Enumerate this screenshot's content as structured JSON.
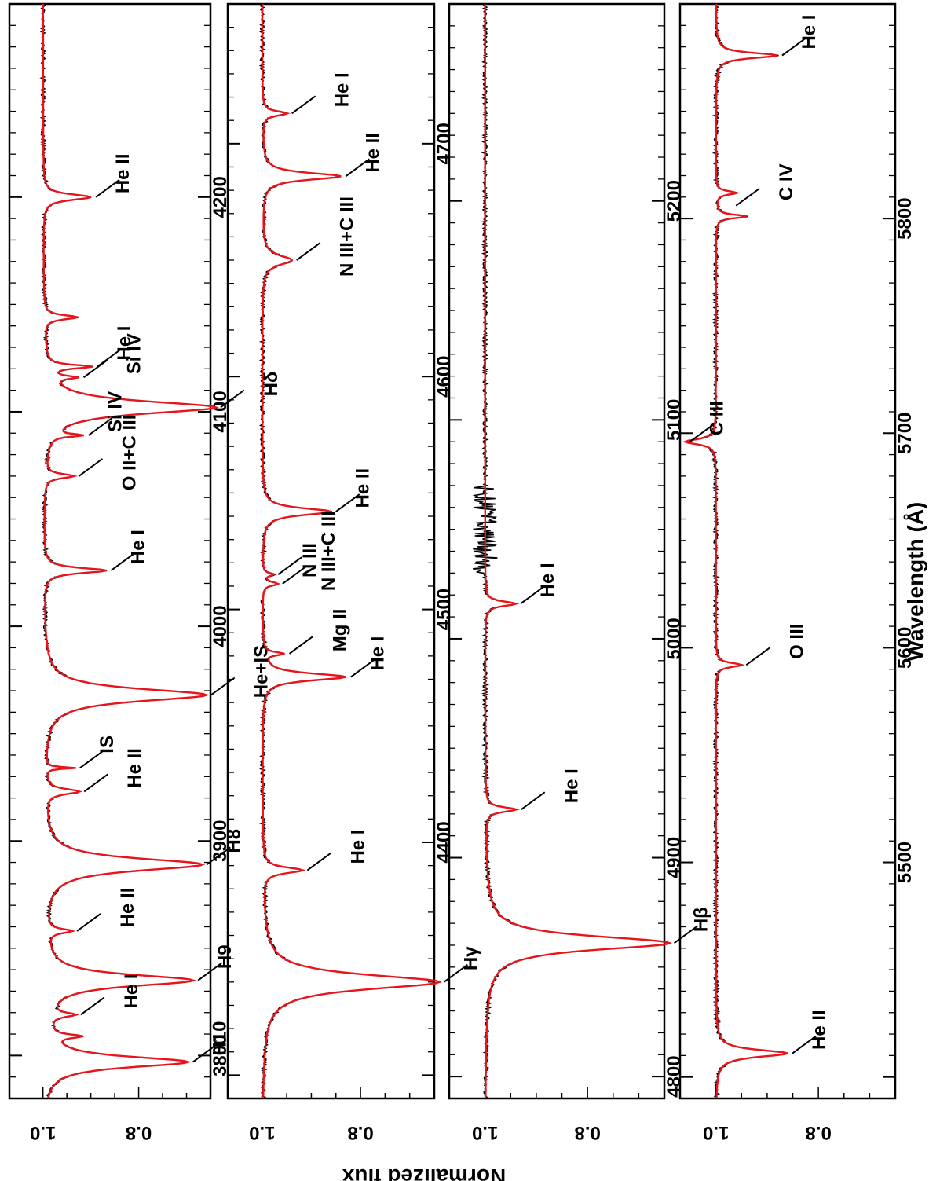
{
  "figure": {
    "ylabel": "Normalized flux",
    "xlabel": "Wavelength (Å)",
    "rotation": "rotated 90° clockwise",
    "colors": {
      "observed": "#000000",
      "model": "#e8141b",
      "frame": "#000000"
    }
  },
  "chart_data": [
    {
      "type": "line",
      "panel": 1,
      "xlim": [
        3780,
        4290
      ],
      "ylim": [
        0.65,
        1.07
      ],
      "xticks": [
        3800,
        3900,
        4000,
        4100,
        4200
      ],
      "yticks": [
        0.8,
        1.0
      ],
      "series": [
        {
          "name": "observed",
          "color": "#000000"
        },
        {
          "name": "model",
          "color": "#e8141b"
        }
      ],
      "lines": [
        {
          "wl": 3797,
          "depth": 0.3,
          "width": 3.0
        },
        {
          "wl": 3809,
          "depth": 0.06,
          "width": 1.0
        },
        {
          "wl": 3819,
          "depth": 0.05,
          "width": 1.2
        },
        {
          "wl": 3835,
          "depth": 0.31,
          "width": 3.2
        },
        {
          "wl": 3858,
          "depth": 0.05,
          "width": 1.2
        },
        {
          "wl": 3889,
          "depth": 0.33,
          "width": 3.5
        },
        {
          "wl": 3923,
          "depth": 0.07,
          "width": 1.5
        },
        {
          "wl": 3934,
          "depth": 0.06,
          "width": 0.5
        },
        {
          "wl": 3968,
          "depth": 0.34,
          "width": 3.5
        },
        {
          "wl": 4026,
          "depth": 0.13,
          "width": 1.5
        },
        {
          "wl": 4070,
          "depth": 0.06,
          "width": 1.2
        },
        {
          "wl": 4089,
          "depth": 0.06,
          "width": 0.8
        },
        {
          "wl": 4102,
          "depth": 0.36,
          "width": 3.5
        },
        {
          "wl": 4116,
          "depth": 0.05,
          "width": 0.8
        },
        {
          "wl": 4121,
          "depth": 0.09,
          "width": 1.0
        },
        {
          "wl": 4144,
          "depth": 0.07,
          "width": 1.2
        },
        {
          "wl": 4200,
          "depth": 0.1,
          "width": 1.6
        }
      ],
      "annotations": [
        {
          "text": "H10",
          "wl": 3797
        },
        {
          "text": "He I",
          "wl": 3819
        },
        {
          "text": "H9",
          "wl": 3835
        },
        {
          "text": "He II",
          "wl": 3858
        },
        {
          "text": "H8",
          "wl": 3889
        },
        {
          "text": "He II",
          "wl": 3923
        },
        {
          "text": "IS",
          "wl": 3934
        },
        {
          "text": "He+IS",
          "wl": 3968
        },
        {
          "text": "He I",
          "wl": 4026
        },
        {
          "text": "O II+C III",
          "wl": 4070
        },
        {
          "text": "Si IV",
          "wl": 4089
        },
        {
          "text": "Hδ",
          "wl": 4102
        },
        {
          "text": "He I",
          "wl": 4121
        },
        {
          "text": "Si IV",
          "wl": 4116
        },
        {
          "text": "He II",
          "wl": 4200
        }
      ]
    },
    {
      "type": "line",
      "panel": 2,
      "xlim": [
        4290,
        4760
      ],
      "ylim": [
        0.65,
        1.07
      ],
      "xticks": [
        4400,
        4500,
        4600,
        4700
      ],
      "yticks": [
        0.8,
        1.0
      ],
      "series": [
        {
          "name": "observed",
          "color": "#000000"
        },
        {
          "name": "model",
          "color": "#e8141b"
        }
      ],
      "lines": [
        {
          "wl": 4340,
          "depth": 0.36,
          "width": 3.8
        },
        {
          "wl": 4388,
          "depth": 0.08,
          "width": 1.5
        },
        {
          "wl": 4471,
          "depth": 0.17,
          "width": 1.8
        },
        {
          "wl": 4481,
          "depth": 0.04,
          "width": 0.8
        },
        {
          "wl": 4511,
          "depth": 0.03,
          "width": 1.0
        },
        {
          "wl": 4515,
          "depth": 0.02,
          "width": 0.8
        },
        {
          "wl": 4542,
          "depth": 0.14,
          "width": 1.8
        },
        {
          "wl": 4650,
          "depth": 0.06,
          "width": 2.5
        },
        {
          "wl": 4686,
          "depth": 0.16,
          "width": 1.8
        },
        {
          "wl": 4713,
          "depth": 0.05,
          "width": 1.2
        }
      ],
      "annotations": [
        {
          "text": "Hγ",
          "wl": 4340
        },
        {
          "text": "He I",
          "wl": 4388
        },
        {
          "text": "He I",
          "wl": 4471
        },
        {
          "text": "Mg II",
          "wl": 4481
        },
        {
          "text": "N III",
          "wl": 4511
        },
        {
          "text": "N III+C III",
          "wl": 4515
        },
        {
          "text": "He II",
          "wl": 4542
        },
        {
          "text": "N III+C III",
          "wl": 4650
        },
        {
          "text": "He II",
          "wl": 4686
        },
        {
          "text": "He I",
          "wl": 4713
        }
      ]
    },
    {
      "type": "line",
      "panel": 3,
      "xlim": [
        4790,
        5290
      ],
      "ylim": [
        0.65,
        1.07
      ],
      "xticks": [
        4800,
        4900,
        5000,
        5100,
        5200
      ],
      "yticks": [
        0.8,
        1.0
      ],
      "series": [
        {
          "name": "observed",
          "color": "#000000"
        },
        {
          "name": "model",
          "color": "#e8141b"
        }
      ],
      "lines": [
        {
          "wl": 4861,
          "depth": 0.36,
          "width": 3.8
        },
        {
          "wl": 4922,
          "depth": 0.06,
          "width": 1.3
        },
        {
          "wl": 5016,
          "depth": 0.06,
          "width": 1.3
        }
      ],
      "annotations": [
        {
          "text": "Hβ",
          "wl": 4861
        },
        {
          "text": "He I",
          "wl": 4922
        },
        {
          "text": "He I",
          "wl": 5016
        }
      ]
    },
    {
      "type": "line",
      "panel": 4,
      "xlim": [
        5390,
        5900
      ],
      "ylim": [
        0.65,
        1.07
      ],
      "xticks": [
        5500,
        5600,
        5700,
        5800
      ],
      "yticks": [
        0.8,
        1.0
      ],
      "series": [
        {
          "name": "observed",
          "color": "#000000"
        },
        {
          "name": "model",
          "color": "#e8141b"
        }
      ],
      "lines": [
        {
          "wl": 5411,
          "depth": 0.14,
          "width": 2.0
        },
        {
          "wl": 5592,
          "depth": 0.05,
          "width": 1.2
        },
        {
          "wl": 5696,
          "depth": -0.06,
          "width": 1.5
        },
        {
          "wl": 5801,
          "depth": 0.06,
          "width": 1.0
        },
        {
          "wl": 5812,
          "depth": 0.04,
          "width": 1.0
        },
        {
          "wl": 5876,
          "depth": 0.12,
          "width": 1.5
        }
      ],
      "annotations": [
        {
          "text": "He II",
          "wl": 5411
        },
        {
          "text": "O III",
          "wl": 5592
        },
        {
          "text": "C III",
          "wl": 5696
        },
        {
          "text": "C IV",
          "wl": 5806
        },
        {
          "text": "He I",
          "wl": 5876
        }
      ]
    }
  ]
}
